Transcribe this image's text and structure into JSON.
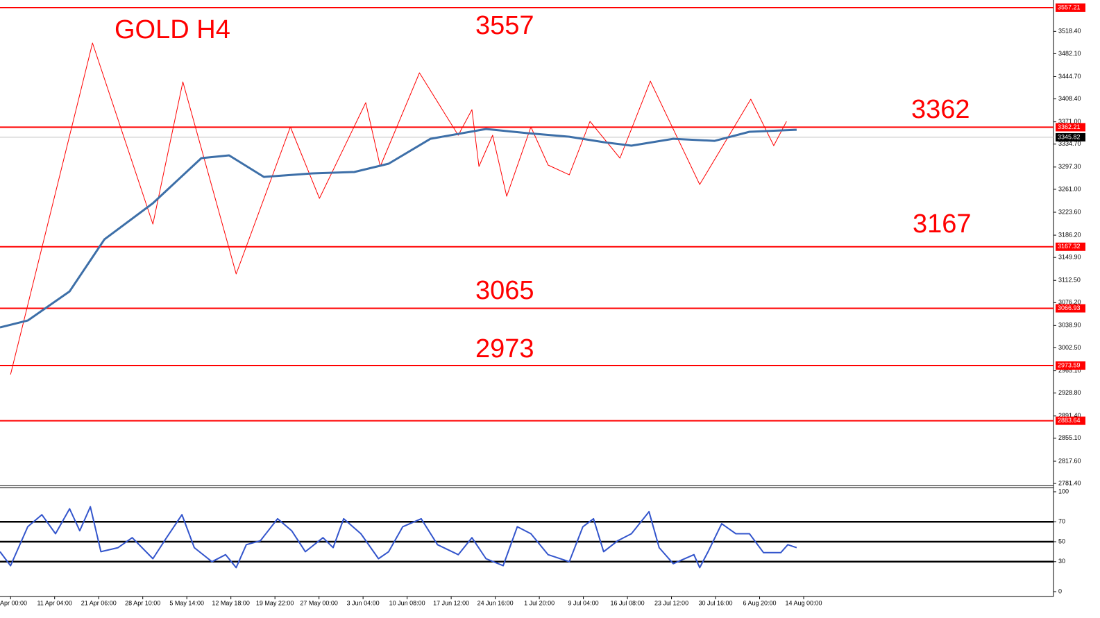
{
  "chart_data": [
    {
      "type": "line",
      "xlim": [
        -0.24,
        23.67
      ],
      "ylim": [
        2781.4,
        3557.21
      ],
      "yticks": [
        {
          "value": 3518.4,
          "label": "3518.40"
        },
        {
          "value": 3482.1,
          "label": "3482.10"
        },
        {
          "value": 3444.7,
          "label": "3444.70"
        },
        {
          "value": 3408.4,
          "label": "3408.40"
        },
        {
          "value": 3371,
          "label": "3371.00"
        },
        {
          "value": 3334.7,
          "label": "3334.70"
        },
        {
          "value": 3297.3,
          "label": "3297.30"
        },
        {
          "value": 3261,
          "label": "3261.00"
        },
        {
          "value": 3223.6,
          "label": "3223.60"
        },
        {
          "value": 3186.2,
          "label": "3186.20"
        },
        {
          "value": 3149.9,
          "label": "3149.90"
        },
        {
          "value": 3112.5,
          "label": "3112.50"
        },
        {
          "value": 3076.2,
          "label": "3076.20"
        },
        {
          "value": 3038.9,
          "label": "3038.90"
        },
        {
          "value": 3002.5,
          "label": "3002.50"
        },
        {
          "value": 2965.1,
          "label": "2965.10"
        },
        {
          "value": 2928.8,
          "label": "2928.80"
        },
        {
          "value": 2891.4,
          "label": "2891.40"
        },
        {
          "value": 2855.1,
          "label": "2855.10"
        },
        {
          "value": 2817.6,
          "label": "2817.60"
        },
        {
          "value": 2781.4,
          "label": "2781.40"
        }
      ],
      "annotations": [
        "GOLD H4",
        "3557",
        "3362",
        "3167",
        "3065",
        "2973"
      ],
      "levels": [
        {
          "value": 3557.21,
          "label": "3557.21"
        },
        {
          "value": 3362.21,
          "label": "3362.21"
        },
        {
          "value": 3167.32,
          "label": "3167.32"
        },
        {
          "value": 3066.93,
          "label": "3066.93"
        },
        {
          "value": 2973.59,
          "label": "2973.59"
        },
        {
          "value": 2883.64,
          "label": "2883.64"
        }
      ],
      "level_color": "#ff0000",
      "current_price": {
        "value": 3345.82,
        "label": "3345.82"
      },
      "series": [
        {
          "color": "#ff0000",
          "width": 1,
          "x": [
            0,
            1.86,
            3.23,
            3.91,
            5.12,
            6.35,
            7.01,
            8.06,
            8.39,
            9.28,
            10.16,
            10.47,
            10.63,
            10.94,
            11.26,
            11.81,
            12.2,
            12.68,
            13.15,
            13.83,
            14.52,
            15.64,
            16.8,
            17.32,
            17.61
          ],
          "values": [
            2958.9,
            3499.5,
            3204.3,
            3436.2,
            3122.9,
            3362.7,
            3246.2,
            3402.3,
            3298.2,
            3450.9,
            3349.1,
            3390.9,
            3298.2,
            3349.1,
            3249.6,
            3362.7,
            3300.5,
            3284.6,
            3371.7,
            3311.8,
            3437.3,
            3268.8,
            3407.9,
            3332.2,
            3371.7
          ]
        },
        {
          "color": "#3d6fa8",
          "width": 3,
          "x": [
            -0.24,
            0.39,
            1.34,
            2.13,
            3.23,
            4.33,
            4.96,
            5.75,
            6.85,
            7.8,
            8.58,
            9.53,
            10.79,
            11.73,
            12.68,
            13.46,
            14.09,
            15.04,
            15.98,
            16.77,
            17.84
          ],
          "values": [
            3035.8,
            3047.1,
            3094.6,
            3179.4,
            3238.3,
            3311.8,
            3316.3,
            3281.2,
            3286.9,
            3289.2,
            3302.7,
            3343.4,
            3359.3,
            3352.5,
            3346.8,
            3337.8,
            3332.2,
            3343.4,
            3340.0,
            3354.8,
            3358.1
          ]
        }
      ]
    },
    {
      "type": "line",
      "categories": [
        "Apr 00:00",
        "11 Apr 04:00",
        "21 Apr 06:00",
        "28 Apr 10:00",
        "5 May 14:00",
        "12 May 18:00",
        "19 May 22:00",
        "27 May 00:00",
        "3 Jun 04:00",
        "10 Jun 08:00",
        "17 Jun 12:00",
        "24 Jun 16:00",
        "1 Jul 20:00",
        "9 Jul 04:00",
        "16 Jul 08:00",
        "23 Jul 12:00",
        "30 Jul 16:00",
        "6 Aug 20:00",
        "14 Aug 00:00"
      ],
      "xlim": [
        -0.24,
        23.67
      ],
      "ylim": [
        0,
        100
      ],
      "yticks": [
        0,
        30,
        50,
        70,
        100
      ],
      "levels": [
        30,
        50,
        70
      ],
      "series": [
        {
          "color": "#3355cc",
          "width": 2,
          "x": [
            -0.24,
            0,
            0.39,
            0.71,
            1.02,
            1.34,
            1.57,
            1.81,
            2.05,
            2.44,
            2.76,
            3.23,
            3.54,
            3.89,
            4.17,
            4.57,
            4.88,
            5.12,
            5.35,
            5.67,
            6.06,
            6.38,
            6.69,
            7.09,
            7.32,
            7.56,
            7.95,
            8.35,
            8.58,
            8.9,
            9.32,
            9.69,
            10.16,
            10.47,
            10.79,
            11.18,
            11.5,
            11.81,
            12.2,
            12.68,
            12.99,
            13.23,
            13.46,
            13.78,
            14.09,
            14.49,
            14.72,
            15.04,
            15.51,
            15.64,
            15.83,
            16.14,
            16.46,
            16.77,
            17.09,
            17.48,
            17.64,
            17.84
          ],
          "values": [
            40,
            26,
            65,
            77,
            58,
            83,
            61,
            85,
            40,
            44,
            54,
            33,
            54,
            77,
            44,
            30,
            37,
            24,
            47,
            51,
            73,
            61,
            40,
            54,
            44,
            73,
            58,
            33,
            40,
            65,
            73,
            47,
            37,
            54,
            33,
            26,
            65,
            58,
            37,
            30,
            65,
            73,
            40,
            51,
            58,
            80,
            44,
            28,
            37,
            24,
            40,
            68,
            58,
            58,
            39,
            39,
            47,
            44
          ]
        }
      ]
    }
  ]
}
